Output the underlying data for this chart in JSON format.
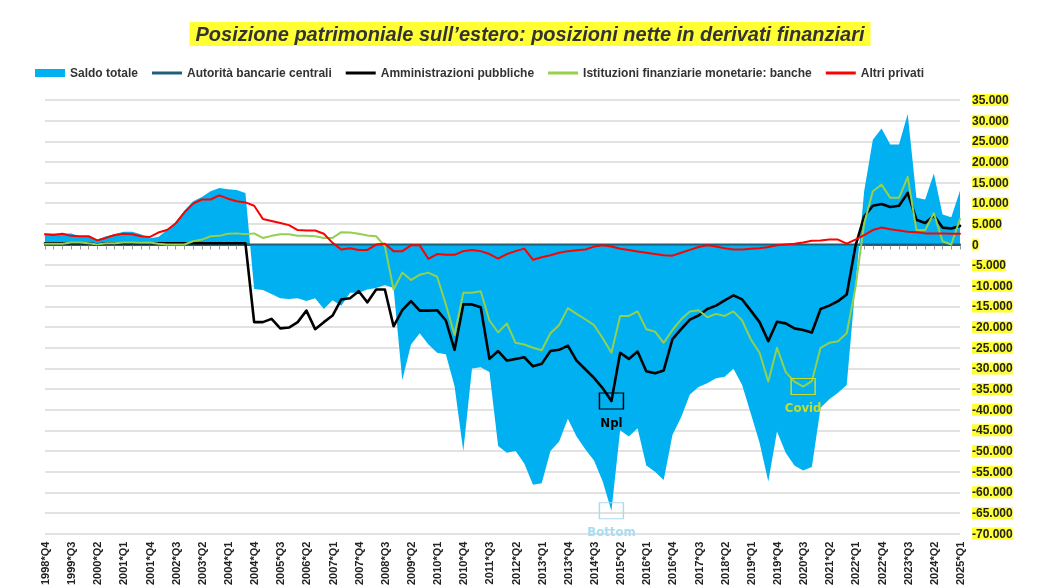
{
  "chart_data": {
    "type": "line",
    "title": "Posizione patrimoniale sull’estero: posizioni nette in derivati finanziari",
    "categories": [
      "1998*Q4",
      null,
      null,
      "1999*Q3",
      null,
      null,
      "2000*Q2",
      null,
      null,
      "2001*Q1",
      null,
      null,
      "2001*Q4",
      null,
      null,
      "2002*Q3",
      null,
      null,
      "2003*Q2",
      null,
      null,
      "2004*Q1",
      null,
      null,
      "2004*Q4",
      null,
      null,
      "2005*Q3",
      null,
      null,
      "2006*Q2",
      null,
      null,
      "2007*Q1",
      null,
      null,
      "2007*Q4",
      null,
      null,
      "2008*Q3",
      null,
      null,
      "2009*Q2",
      null,
      null,
      "2010*Q1",
      null,
      null,
      "2010*Q4",
      null,
      null,
      "2011*Q3",
      null,
      null,
      "2012*Q2",
      null,
      null,
      "2013*Q1",
      null,
      null,
      "2013*Q4",
      null,
      null,
      "2014*Q3",
      null,
      null,
      "2015*Q2",
      null,
      null,
      "2016*Q1",
      null,
      null,
      "2016*Q4",
      null,
      null,
      "2017*Q3",
      null,
      null,
      "2018*Q2",
      null,
      null,
      "2019*Q1",
      null,
      null,
      "2019*Q4",
      null,
      null,
      "2020*Q3",
      null,
      null,
      "2021*Q2",
      null,
      null,
      "2022*Q1",
      null,
      null,
      "2022*Q4",
      null,
      null,
      "2023*Q3",
      null,
      null,
      "2024*Q2",
      null,
      null,
      "2025*Q1"
    ],
    "series": [
      {
        "name": "Saldo totale",
        "type": "area",
        "color": "#00b0f0",
        "values": [
          2700,
          2700,
          2700,
          2700,
          2000,
          2000,
          1200,
          2000,
          2500,
          3100,
          3100,
          2500,
          1500,
          1800,
          3500,
          5500,
          8200,
          10500,
          11500,
          12900,
          13700,
          13400,
          13200,
          12500,
          -10800,
          -11000,
          -12000,
          -13000,
          -13200,
          -13000,
          -13700,
          -13000,
          -15600,
          -13500,
          -14800,
          -11700,
          -11700,
          -10900,
          -10500,
          -9800,
          -10500,
          -32800,
          -24200,
          -21500,
          -24200,
          -26200,
          -26600,
          -34300,
          -50000,
          -30000,
          -29700,
          -30900,
          -48800,
          -50400,
          -50000,
          -53000,
          -58200,
          -57800,
          -50000,
          -47700,
          -42200,
          -46500,
          -49600,
          -52300,
          -57400,
          -64500,
          -45000,
          -46500,
          -44500,
          -53500,
          -55000,
          -57000,
          -46100,
          -41800,
          -36300,
          -34500,
          -33600,
          -32400,
          -32000,
          -30100,
          -34000,
          -41000,
          -48000,
          -57400,
          -45300,
          -50400,
          -53500,
          -54700,
          -53900,
          -39500,
          -37500,
          -35900,
          -34000,
          -10000,
          12900,
          25400,
          28100,
          24200,
          24200,
          31600,
          11300,
          10900,
          17200,
          7300,
          6600,
          13000
        ]
      },
      {
        "name": "Autorità bancarie centrali",
        "color": "#1f5f7a",
        "values": [
          0,
          0,
          0,
          0,
          0,
          0,
          0,
          0,
          0,
          0,
          0,
          0,
          0,
          0,
          0,
          0,
          0,
          0,
          0,
          0,
          0,
          0,
          0,
          0,
          0,
          0,
          0,
          0,
          0,
          0,
          0,
          0,
          0,
          0,
          0,
          0,
          0,
          0,
          0,
          0,
          0,
          0,
          0,
          0,
          0,
          0,
          0,
          0,
          0,
          0,
          0,
          0,
          0,
          0,
          0,
          0,
          0,
          0,
          0,
          0,
          0,
          0,
          0,
          0,
          0,
          0,
          0,
          0,
          0,
          0,
          0,
          0,
          0,
          0,
          0,
          0,
          0,
          0,
          0,
          0,
          0,
          0,
          0,
          0,
          0,
          0,
          0,
          0,
          0,
          0,
          0,
          0,
          0,
          0,
          0,
          0,
          0,
          0,
          0,
          0,
          0,
          0,
          0,
          0,
          0,
          0
        ]
      },
      {
        "name": "Amministrazioni pubbliche",
        "color": "#000000",
        "values": [
          300,
          300,
          300,
          300,
          300,
          300,
          0,
          300,
          300,
          300,
          300,
          300,
          300,
          300,
          300,
          300,
          300,
          300,
          300,
          300,
          300,
          300,
          300,
          300,
          -18800,
          -18800,
          -18000,
          -20300,
          -20100,
          -18800,
          -16000,
          -20500,
          -18800,
          -17200,
          -13300,
          -13000,
          -11300,
          -14000,
          -10900,
          -10900,
          -19800,
          -15900,
          -13700,
          -16000,
          -16000,
          -15900,
          -18400,
          -25500,
          -14500,
          -14500,
          -15200,
          -27700,
          -25800,
          -28100,
          -27700,
          -27300,
          -29500,
          -28900,
          -25800,
          -25500,
          -24500,
          -28100,
          -30200,
          -32300,
          -34800,
          -37900,
          -26200,
          -27700,
          -25900,
          -30700,
          -31200,
          -30500,
          -22900,
          -20500,
          -18200,
          -17200,
          -15600,
          -14800,
          -13500,
          -12300,
          -13300,
          -16000,
          -18800,
          -23400,
          -18700,
          -19100,
          -20300,
          -20700,
          -21300,
          -15600,
          -14800,
          -13700,
          -12100,
          -400,
          6800,
          9400,
          9800,
          9100,
          9400,
          12500,
          6000,
          5200,
          7000,
          4100,
          3900,
          4500
        ]
      },
      {
        "name": "Istituzioni finanziarie monetarie: banche",
        "color": "#92d050",
        "values": [
          200,
          200,
          200,
          500,
          500,
          300,
          0,
          300,
          300,
          500,
          500,
          400,
          500,
          200,
          0,
          0,
          0,
          800,
          1200,
          2000,
          2100,
          2600,
          2700,
          2500,
          2700,
          1600,
          2100,
          2500,
          2500,
          2100,
          2100,
          2000,
          1600,
          1600,
          3000,
          2900,
          2600,
          2200,
          2000,
          -400,
          -10900,
          -6800,
          -8600,
          -7300,
          -6800,
          -7800,
          -14500,
          -21900,
          -11700,
          -11700,
          -11300,
          -18400,
          -21300,
          -19100,
          -23800,
          -24200,
          -25000,
          -25600,
          -21500,
          -19500,
          -15400,
          -16800,
          -18100,
          -19500,
          -22700,
          -26200,
          -17300,
          -17300,
          -16200,
          -20500,
          -21100,
          -23800,
          -20700,
          -18100,
          -16200,
          -15900,
          -17600,
          -16800,
          -17300,
          -16200,
          -18400,
          -23000,
          -26200,
          -33200,
          -25000,
          -30900,
          -33200,
          -34400,
          -33100,
          -25000,
          -23800,
          -23400,
          -21500,
          -10500,
          5100,
          12900,
          14500,
          11300,
          11300,
          16400,
          3500,
          3500,
          7600,
          800,
          0,
          6200
        ]
      },
      {
        "name": "Altri privati",
        "color": "#ff0000",
        "values": [
          2500,
          2300,
          2600,
          2100,
          2000,
          2000,
          1000,
          1600,
          2300,
          2600,
          2500,
          2000,
          1800,
          2900,
          3500,
          5100,
          7800,
          9900,
          10900,
          10900,
          11900,
          11100,
          10500,
          10200,
          9400,
          6200,
          5700,
          5200,
          4700,
          3500,
          3400,
          3400,
          2600,
          400,
          -1200,
          -900,
          -1300,
          -1300,
          0,
          200,
          -1600,
          -1600,
          -200,
          -200,
          -3500,
          -2300,
          -2500,
          -2500,
          -1600,
          -1300,
          -1600,
          -2300,
          -3400,
          -2300,
          -1600,
          -1000,
          -3700,
          -3100,
          -2600,
          -2000,
          -1600,
          -1400,
          -1200,
          -500,
          -200,
          -500,
          -1000,
          -1300,
          -1700,
          -2000,
          -2300,
          -2600,
          -2700,
          -2000,
          -1300,
          -600,
          -200,
          -500,
          -900,
          -1200,
          -1200,
          -1000,
          -900,
          -600,
          -200,
          0,
          200,
          500,
          900,
          1000,
          1200,
          1200,
          200,
          1200,
          2300,
          3500,
          4100,
          3700,
          3400,
          3100,
          3000,
          2700,
          2700,
          2700,
          2600,
          2600
        ]
      }
    ],
    "annotations": [
      {
        "text": "Npl",
        "y": -37900
      },
      {
        "text": "Bottom",
        "y": -64500
      },
      {
        "text": "Covid",
        "y": -34400
      }
    ],
    "ylim": [
      -70000,
      35000
    ],
    "yticks": [
      {
        "value": 35000,
        "label": "35.000"
      },
      {
        "value": 30000,
        "label": "30.000"
      },
      {
        "value": 25000,
        "label": "25.000"
      },
      {
        "value": 20000,
        "label": "20.000"
      },
      {
        "value": 15000,
        "label": "15.000"
      },
      {
        "value": 10000,
        "label": "10.000"
      },
      {
        "value": 5000,
        "label": "5.000"
      },
      0,
      {
        "value": -5000,
        "label": "-5.000"
      },
      {
        "value": -10000,
        "label": "-10.000"
      },
      {
        "value": -15000,
        "label": "-15.000"
      },
      {
        "value": -20000,
        "label": "-20.000"
      },
      {
        "value": -25000,
        "label": "-25.000"
      },
      {
        "value": -30000,
        "label": "-30.000"
      },
      {
        "value": -35000,
        "label": "-35.000"
      },
      {
        "value": -40000,
        "label": "-40.000"
      },
      {
        "value": -45000,
        "label": "-45.000"
      },
      {
        "value": -50000,
        "label": "-50.000"
      },
      {
        "value": -55000,
        "label": "-55.000"
      },
      {
        "value": -60000,
        "label": "-60.000"
      },
      {
        "value": -65000,
        "label": "-65.000"
      },
      {
        "value": -70000,
        "label": "-70.000"
      }
    ],
    "grid": "y",
    "legend": "top",
    "marker": "none",
    "line_style": "solid"
  }
}
